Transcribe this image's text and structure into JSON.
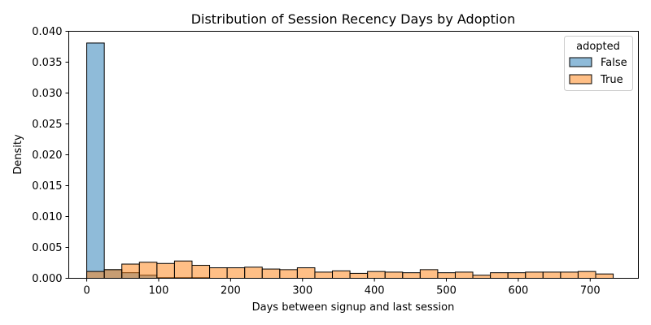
{
  "chart_data": {
    "type": "histogram",
    "title": "Distribution of Session Recency Days by Adoption",
    "xlabel": "Days between signup and last session",
    "ylabel": "Density",
    "xlim": [
      -25,
      767
    ],
    "ylim": [
      0,
      0.04
    ],
    "xticks": [
      0,
      100,
      200,
      300,
      400,
      500,
      600,
      700
    ],
    "yticks": [
      0.0,
      0.005,
      0.01,
      0.015,
      0.02,
      0.025,
      0.03,
      0.035,
      0.04
    ],
    "ytick_labels": [
      "0.000",
      "0.005",
      "0.010",
      "0.015",
      "0.020",
      "0.025",
      "0.030",
      "0.035",
      "0.040"
    ],
    "bin_edges": [
      0,
      24.4,
      48.8,
      73.2,
      97.6,
      122,
      146.4,
      170.8,
      195.2,
      219.6,
      244,
      268.4,
      292.8,
      317.2,
      341.6,
      366,
      390.4,
      414.8,
      439.2,
      463.6,
      488,
      512.4,
      536.8,
      561.2,
      585.6,
      610,
      634.4,
      658.8,
      683.2,
      707.6,
      732
    ],
    "legend": {
      "title": "adopted",
      "position": "top-right"
    },
    "grid": false,
    "series": [
      {
        "name": "False",
        "color": "#1f77b4",
        "values": [
          0.0381,
          0.0014,
          0.0009,
          0.0005,
          0.0001,
          0.0001,
          0.0001,
          0,
          0,
          0,
          0,
          0,
          0,
          0,
          0,
          0,
          0,
          0,
          0,
          0,
          0,
          0,
          0,
          0,
          0,
          0,
          0,
          0,
          0,
          0
        ]
      },
      {
        "name": "True",
        "color": "#ff7f0e",
        "values": [
          0.0011,
          0.0014,
          0.0023,
          0.0026,
          0.0024,
          0.0028,
          0.0021,
          0.0017,
          0.0017,
          0.0018,
          0.0015,
          0.0014,
          0.0017,
          0.001,
          0.0012,
          0.0008,
          0.0011,
          0.001,
          0.0009,
          0.0014,
          0.0009,
          0.001,
          0.0005,
          0.0009,
          0.0009,
          0.001,
          0.001,
          0.001,
          0.0011,
          0.0007
        ]
      }
    ]
  }
}
